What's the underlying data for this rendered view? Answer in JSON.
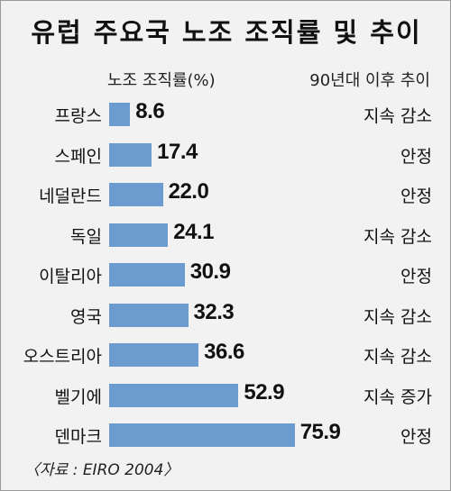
{
  "chart_data": {
    "type": "bar",
    "orientation": "horizontal",
    "title": "유럽 주요국 노조 조직률 및 추이",
    "value_header": "노조 조직률(%)",
    "trend_header": "90년대 이후 추이",
    "categories": [
      "프랑스",
      "스페인",
      "네덜란드",
      "독일",
      "이탈리아",
      "영국",
      "오스트리아",
      "벨기에",
      "덴마크"
    ],
    "values": [
      8.6,
      17.4,
      22.0,
      24.1,
      30.9,
      32.3,
      36.6,
      52.9,
      75.9
    ],
    "value_labels": [
      "8.6",
      "17.4",
      "22.0",
      "24.1",
      "30.9",
      "32.3",
      "36.6",
      "52.9",
      "75.9"
    ],
    "trends": [
      "지속 감소",
      "안정",
      "안정",
      "지속 감소",
      "안정",
      "지속 감소",
      "지속 감소",
      "지속 증가",
      "안정"
    ],
    "source": "〈자료 : EIRO 2004〉",
    "bar_color": "#6b9bcf",
    "background_color": "#f2f2f2"
  }
}
